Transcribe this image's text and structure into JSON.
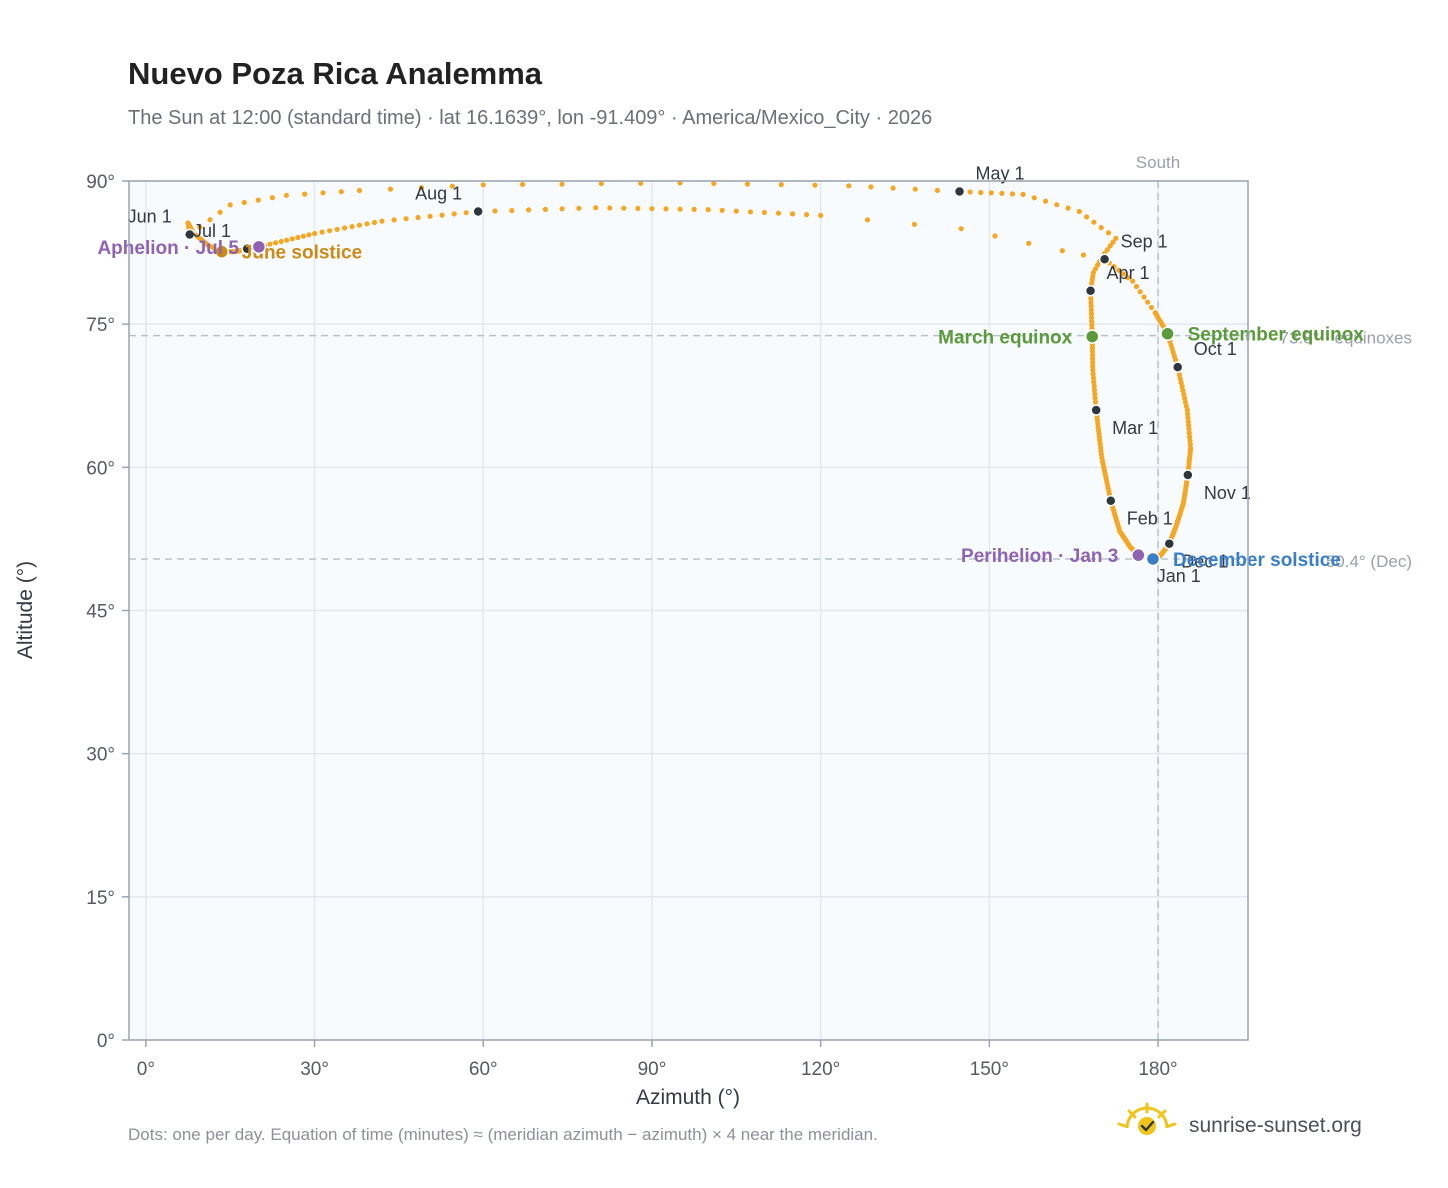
{
  "chart_data": {
    "type": "scatter",
    "title": "Nuevo Poza Rica Analemma",
    "subtitle": "The Sun at 12:00 (standard time) · lat 16.1639°, lon -91.409° · America/Mexico_City · 2026",
    "xlabel": "Azimuth (°)",
    "ylabel": "Altitude (°)",
    "xlim": [
      -3,
      196
    ],
    "ylim": [
      0,
      90
    ],
    "x_ticks": [
      0,
      30,
      60,
      90,
      120,
      150,
      180
    ],
    "y_ticks": [
      0,
      15,
      30,
      45,
      60,
      75,
      90
    ],
    "x_tick_labels": [
      "0°",
      "30°",
      "60°",
      "90°",
      "120°",
      "150°",
      "180°"
    ],
    "y_tick_labels": [
      "0°",
      "15°",
      "30°",
      "45°",
      "60°",
      "75°",
      "90°"
    ],
    "grid": true,
    "colors": {
      "dots": "#f5a623",
      "month": "#2f3640",
      "equinox": "#5a9a3a",
      "solstice_june": "#cc8a16",
      "solstice_dec": "#3b7ec8",
      "apsis": "#8e63b3",
      "ref_line": "#b8c2cc",
      "plot_bg": "#f8fbfd",
      "grid": "#e3e8ee",
      "frame": "#9aa5b1"
    },
    "path_keypoints": [
      {
        "doy": 1,
        "az": 178.7,
        "alt": 50.5
      },
      {
        "doy": 3,
        "az": 176.5,
        "alt": 50.8
      },
      {
        "doy": 10,
        "az": 175.0,
        "alt": 51.7
      },
      {
        "doy": 20,
        "az": 173.2,
        "alt": 53.3
      },
      {
        "doy": 32,
        "az": 171.6,
        "alt": 56.5
      },
      {
        "doy": 46,
        "az": 170.0,
        "alt": 61.0
      },
      {
        "doy": 60,
        "az": 169.0,
        "alt": 66.0
      },
      {
        "doy": 70,
        "az": 168.4,
        "alt": 70.2
      },
      {
        "doy": 79,
        "az": 168.3,
        "alt": 73.7
      },
      {
        "doy": 91,
        "az": 168.0,
        "alt": 78.5
      },
      {
        "doy": 96,
        "az": 168.5,
        "alt": 80.4
      },
      {
        "doy": 100,
        "az": 170.0,
        "alt": 82.0
      },
      {
        "doy": 105,
        "az": 172.5,
        "alt": 84.0
      },
      {
        "doy": 110,
        "az": 166.0,
        "alt": 86.8
      },
      {
        "doy": 115,
        "az": 156.0,
        "alt": 88.6
      },
      {
        "doy": 121,
        "az": 144.7,
        "alt": 88.9
      },
      {
        "doy": 126,
        "az": 125.0,
        "alt": 89.5
      },
      {
        "doy": 131,
        "az": 95.0,
        "alt": 89.8
      },
      {
        "doy": 136,
        "az": 60.0,
        "alt": 89.6
      },
      {
        "doy": 140,
        "az": 38.0,
        "alt": 89.0
      },
      {
        "doy": 144,
        "az": 25.0,
        "alt": 88.5
      },
      {
        "doy": 148,
        "az": 15.0,
        "alt": 87.5
      },
      {
        "doy": 152,
        "az": 7.8,
        "alt": 84.4
      },
      {
        "doy": 156,
        "az": 7.5,
        "alt": 85.6
      },
      {
        "doy": 161,
        "az": 8.5,
        "alt": 84.5
      },
      {
        "doy": 167,
        "az": 11.0,
        "alt": 83.3
      },
      {
        "doy": 172,
        "az": 13.5,
        "alt": 82.6
      },
      {
        "doy": 177,
        "az": 16.0,
        "alt": 82.6
      },
      {
        "doy": 182,
        "az": 18.0,
        "alt": 82.9
      },
      {
        "doy": 186,
        "az": 20.1,
        "alt": 83.1
      },
      {
        "doy": 196,
        "az": 30.0,
        "alt": 84.5
      },
      {
        "doy": 205,
        "az": 42.0,
        "alt": 85.8
      },
      {
        "doy": 213,
        "az": 59.1,
        "alt": 86.8
      },
      {
        "doy": 220,
        "az": 80.0,
        "alt": 87.2
      },
      {
        "doy": 228,
        "az": 100.0,
        "alt": 87.0
      },
      {
        "doy": 236,
        "az": 120.0,
        "alt": 86.4
      },
      {
        "doy": 239,
        "az": 145.0,
        "alt": 85.0
      },
      {
        "doy": 242,
        "az": 163.0,
        "alt": 82.7
      },
      {
        "doy": 244,
        "az": 170.5,
        "alt": 81.8
      },
      {
        "doy": 250,
        "az": 175.5,
        "alt": 79.5
      },
      {
        "doy": 256,
        "az": 179.5,
        "alt": 76.2
      },
      {
        "doy": 265,
        "az": 181.7,
        "alt": 74.0
      },
      {
        "doy": 274,
        "az": 183.5,
        "alt": 70.5
      },
      {
        "doy": 285,
        "az": 185.2,
        "alt": 66.0
      },
      {
        "doy": 295,
        "az": 185.8,
        "alt": 62.0
      },
      {
        "doy": 305,
        "az": 185.3,
        "alt": 59.2
      },
      {
        "doy": 316,
        "az": 184.5,
        "alt": 56.2
      },
      {
        "doy": 325,
        "az": 183.2,
        "alt": 53.8
      },
      {
        "doy": 335,
        "az": 182.0,
        "alt": 52.0
      },
      {
        "doy": 345,
        "az": 180.5,
        "alt": 50.8
      },
      {
        "doy": 355,
        "az": 179.1,
        "alt": 50.4
      },
      {
        "doy": 366,
        "az": 178.7,
        "alt": 50.5
      }
    ],
    "months": [
      {
        "label": "Jan 1",
        "az": 178.7,
        "alt": 50.5,
        "anchor": "start",
        "dx": 6,
        "dy": 24
      },
      {
        "label": "Feb 1",
        "az": 171.6,
        "alt": 56.5,
        "anchor": "start",
        "dx": 16,
        "dy": 24
      },
      {
        "label": "Mar 1",
        "az": 169.0,
        "alt": 66.0,
        "anchor": "start",
        "dx": 16,
        "dy": 24
      },
      {
        "label": "Apr 1",
        "az": 168.0,
        "alt": 78.5,
        "anchor": "start",
        "dx": 16,
        "dy": -12
      },
      {
        "label": "May 1",
        "az": 144.7,
        "alt": 88.9,
        "anchor": "start",
        "dx": 16,
        "dy": -12
      },
      {
        "label": "Jun 1",
        "az": 7.8,
        "alt": 84.4,
        "anchor": "end",
        "dx": -18,
        "dy": -12
      },
      {
        "label": "Jul 1",
        "az": 18.0,
        "alt": 82.9,
        "anchor": "end",
        "dx": -16,
        "dy": -12
      },
      {
        "label": "Aug 1",
        "az": 59.1,
        "alt": 86.8,
        "anchor": "end",
        "dx": -16,
        "dy": -12
      },
      {
        "label": "Sep 1",
        "az": 170.5,
        "alt": 81.8,
        "anchor": "start",
        "dx": 16,
        "dy": -12
      },
      {
        "label": "Oct 1",
        "az": 183.5,
        "alt": 70.5,
        "anchor": "start",
        "dx": 16,
        "dy": -12
      },
      {
        "label": "Nov 1",
        "az": 185.3,
        "alt": 59.2,
        "anchor": "start",
        "dx": 16,
        "dy": 24
      },
      {
        "label": "Dec 1",
        "az": 182.0,
        "alt": 52.0,
        "anchor": "start",
        "dx": 12,
        "dy": 24
      }
    ],
    "events": [
      {
        "label": "March equinox",
        "az": 168.3,
        "alt": 73.7,
        "color": "#5a9a3a",
        "anchor": "end",
        "dx": -20,
        "dy": 7
      },
      {
        "label": "June solstice",
        "az": 13.5,
        "alt": 82.6,
        "color": "#cc8a16",
        "anchor": "start",
        "dx": 20,
        "dy": 7
      },
      {
        "label": "September equinox",
        "az": 181.7,
        "alt": 74.0,
        "color": "#5a9a3a",
        "anchor": "start",
        "dx": 20,
        "dy": 7
      },
      {
        "label": "December solstice",
        "az": 179.1,
        "alt": 50.4,
        "color": "#3b7ec8",
        "anchor": "start",
        "dx": 20,
        "dy": 7
      },
      {
        "label": "Perihelion · Jan 3",
        "az": 176.5,
        "alt": 50.8,
        "color": "#8e63b3",
        "anchor": "end",
        "dx": -20,
        "dy": 7
      },
      {
        "label": "Aphelion · Jul 5",
        "az": 20.1,
        "alt": 83.1,
        "color": "#8e63b3",
        "anchor": "end",
        "dx": -20,
        "dy": 7
      }
    ],
    "reference_lines": [
      {
        "orientation": "vertical",
        "value": 180,
        "label": "South"
      },
      {
        "orientation": "horizontal",
        "value": 73.8,
        "label": "73.8° · equinoxes"
      },
      {
        "orientation": "horizontal",
        "value": 50.4,
        "label": "50.4° (Dec)"
      }
    ]
  },
  "footnote": "Dots: one per day. Equation of time (minutes) ≈ (meridian azimuth − azimuth) × 4 near the meridian.",
  "brand": {
    "name": "sunrise-sunset.org",
    "icon": "sun-logo-icon"
  }
}
